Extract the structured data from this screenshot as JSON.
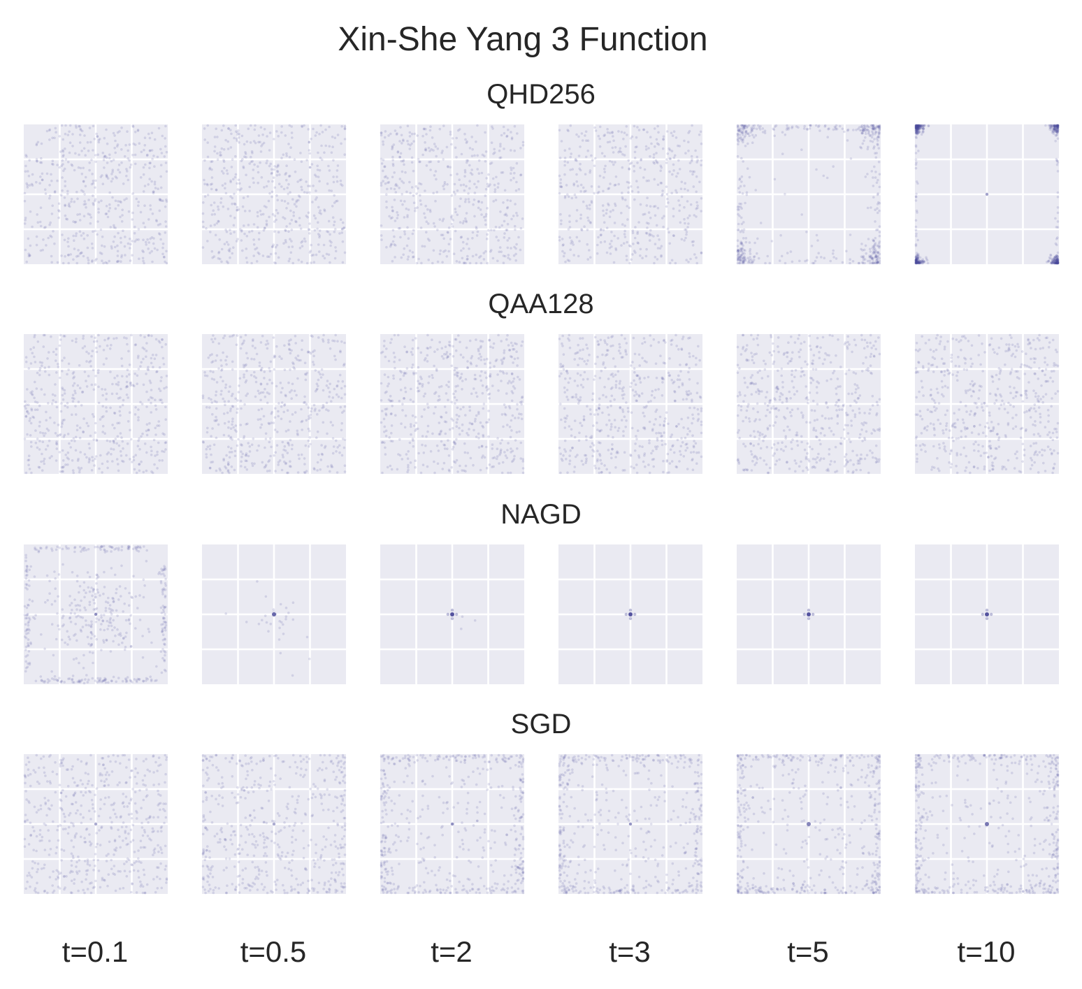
{
  "chart_data": {
    "type": "scatter",
    "title": "Xin-She Yang 3 Function",
    "grid": true,
    "time_labels": [
      "t=0.1",
      "t=0.5",
      "t=2",
      "t=3",
      "t=5",
      "t=10"
    ],
    "xlim": [
      -20,
      20
    ],
    "ylim": [
      -20,
      20
    ],
    "grid_lines": [
      -10,
      0,
      10
    ],
    "point_color": "#4b4a9a",
    "panel_background": "#eaeaf2",
    "gridline_color": "#ffffff",
    "rows": [
      {
        "name": "QHD256",
        "panels": [
          {
            "t": 0.1,
            "pattern": "uniform",
            "n": 520,
            "center": 0
          },
          {
            "t": 0.5,
            "pattern": "uniform",
            "n": 520,
            "center": 0
          },
          {
            "t": 2,
            "pattern": "uniform",
            "n": 500,
            "center": 0
          },
          {
            "t": 3,
            "pattern": "uniform",
            "n": 480,
            "center": 0
          },
          {
            "t": 5,
            "pattern": "corners",
            "n": 520,
            "center": 0
          },
          {
            "t": 10,
            "pattern": "tight_corners",
            "n": 520,
            "center": 4
          }
        ]
      },
      {
        "name": "QAA128",
        "panels": [
          {
            "t": 0.1,
            "pattern": "uniform",
            "n": 520,
            "center": 0
          },
          {
            "t": 0.5,
            "pattern": "uniform",
            "n": 520,
            "center": 0
          },
          {
            "t": 2,
            "pattern": "uniform",
            "n": 520,
            "center": 0
          },
          {
            "t": 3,
            "pattern": "uniform",
            "n": 520,
            "center": 0
          },
          {
            "t": 5,
            "pattern": "uniform",
            "n": 520,
            "center": 0
          },
          {
            "t": 10,
            "pattern": "uniform",
            "n": 520,
            "center": 0
          }
        ]
      },
      {
        "name": "NAGD",
        "panels": [
          {
            "t": 0.1,
            "pattern": "rounded_edges",
            "n": 520,
            "center": 6
          },
          {
            "t": 0.5,
            "pattern": "center_cluster",
            "n": 30,
            "center": 12
          },
          {
            "t": 2,
            "pattern": "center_cross",
            "n": 3,
            "center": 20
          },
          {
            "t": 3,
            "pattern": "center_cross",
            "n": 0,
            "center": 20
          },
          {
            "t": 5,
            "pattern": "center_cross",
            "n": 0,
            "center": 20
          },
          {
            "t": 10,
            "pattern": "center_cross",
            "n": 0,
            "center": 20
          }
        ]
      },
      {
        "name": "SGD",
        "panels": [
          {
            "t": 0.1,
            "pattern": "uniform",
            "n": 520,
            "center": 3
          },
          {
            "t": 0.5,
            "pattern": "uniform_edge",
            "n": 520,
            "center": 3
          },
          {
            "t": 2,
            "pattern": "edges",
            "n": 520,
            "center": 6
          },
          {
            "t": 3,
            "pattern": "edges",
            "n": 520,
            "center": 6
          },
          {
            "t": 5,
            "pattern": "edges",
            "n": 520,
            "center": 8
          },
          {
            "t": 10,
            "pattern": "edges",
            "n": 520,
            "center": 10
          }
        ]
      }
    ]
  }
}
